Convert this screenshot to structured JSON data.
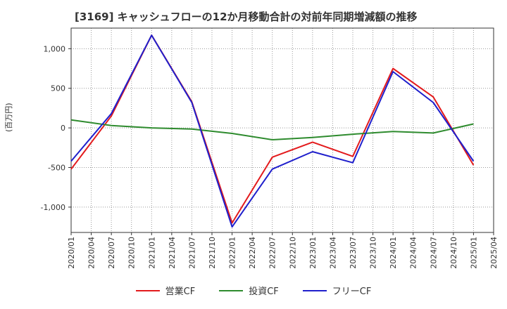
{
  "chart_data": {
    "type": "line",
    "title": "[3169]  キャッシュフローの12か月移動合計の対前年同期増減額の推移",
    "ylabel": "(百万円)",
    "xlabel": "",
    "x": [
      "2020/01",
      "2020/04",
      "2020/07",
      "2020/10",
      "2021/01",
      "2021/04",
      "2021/07",
      "2021/10",
      "2022/01",
      "2022/04",
      "2022/07",
      "2022/10",
      "2023/01",
      "2023/04",
      "2023/07",
      "2023/10",
      "2024/01",
      "2024/04",
      "2024/07",
      "2024/10",
      "2025/01",
      "2025/04"
    ],
    "yticks": [
      1000,
      500,
      0,
      -500,
      -1000
    ],
    "ytick_labels": [
      "1,000",
      "500",
      "0",
      "-500",
      "-1,000"
    ],
    "ylim": [
      -1320,
      1260
    ],
    "grid": true,
    "series": [
      {
        "name": "営業CF",
        "color": "#e31a1c",
        "points": [
          [
            "2020/01",
            -520
          ],
          [
            "2020/07",
            150
          ],
          [
            "2021/01",
            1170
          ],
          [
            "2021/07",
            330
          ],
          [
            "2022/01",
            -1200
          ],
          [
            "2022/07",
            -370
          ],
          [
            "2023/01",
            -180
          ],
          [
            "2023/07",
            -360
          ],
          [
            "2024/01",
            750
          ],
          [
            "2024/07",
            390
          ],
          [
            "2025/01",
            -470
          ]
        ]
      },
      {
        "name": "投資CF",
        "color": "#2e8b2e",
        "points": [
          [
            "2020/01",
            100
          ],
          [
            "2020/07",
            30
          ],
          [
            "2021/01",
            0
          ],
          [
            "2021/07",
            -15
          ],
          [
            "2022/01",
            -70
          ],
          [
            "2022/07",
            -150
          ],
          [
            "2023/01",
            -120
          ],
          [
            "2023/07",
            -80
          ],
          [
            "2024/01",
            -45
          ],
          [
            "2024/07",
            -65
          ],
          [
            "2025/01",
            50
          ]
        ]
      },
      {
        "name": "フリーCF",
        "color": "#1f1fcc",
        "points": [
          [
            "2020/01",
            -420
          ],
          [
            "2020/07",
            180
          ],
          [
            "2021/01",
            1170
          ],
          [
            "2021/07",
            320
          ],
          [
            "2022/01",
            -1250
          ],
          [
            "2022/07",
            -520
          ],
          [
            "2023/01",
            -300
          ],
          [
            "2023/07",
            -440
          ],
          [
            "2024/01",
            710
          ],
          [
            "2024/07",
            320
          ],
          [
            "2025/01",
            -420
          ]
        ]
      }
    ],
    "legend_position": "bottom-center"
  }
}
